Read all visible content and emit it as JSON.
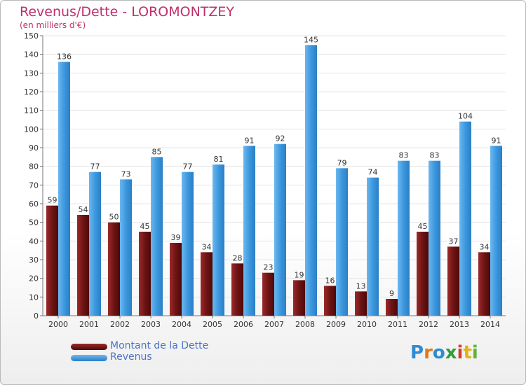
{
  "header": {
    "title": "Revenus/Dette - LOROMONTZEY",
    "subtitle": "(en milliers d'€)"
  },
  "legend": {
    "items": [
      {
        "label": "Montant de la Dette",
        "color": "#7a1a1a"
      },
      {
        "label": "Revenus",
        "color": "#3a95dc"
      }
    ]
  },
  "logo": {
    "text": "Proxiti",
    "letters": [
      "P",
      "r",
      "o",
      "x",
      "i",
      "t",
      "i"
    ],
    "colors": [
      "#2f8bd1",
      "#e07a16",
      "#2f8bd1",
      "#2f9e3b",
      "#d0402a",
      "#e0b414",
      "#5fb336"
    ]
  },
  "chart_data": {
    "type": "bar",
    "title": "Revenus/Dette - LOROMONTZEY",
    "subtitle": "(en milliers d'€)",
    "categories": [
      "2000",
      "2001",
      "2002",
      "2003",
      "2004",
      "2005",
      "2006",
      "2007",
      "2008",
      "2009",
      "2010",
      "2011",
      "2012",
      "2013",
      "2014"
    ],
    "series": [
      {
        "name": "Montant de la Dette",
        "color": "#7a1a1a",
        "values": [
          59,
          54,
          50,
          45,
          39,
          34,
          28,
          23,
          19,
          16,
          13,
          9,
          45,
          37,
          34
        ]
      },
      {
        "name": "Revenus",
        "color": "#3a95dc",
        "values": [
          136,
          77,
          73,
          85,
          77,
          81,
          91,
          92,
          145,
          79,
          74,
          83,
          83,
          104,
          91
        ]
      }
    ],
    "ylim": [
      0,
      150
    ],
    "yticks": [
      0,
      10,
      20,
      30,
      40,
      50,
      60,
      70,
      80,
      90,
      100,
      110,
      120,
      130,
      140,
      150
    ],
    "grid": true,
    "legend_position": "bottom-left"
  }
}
